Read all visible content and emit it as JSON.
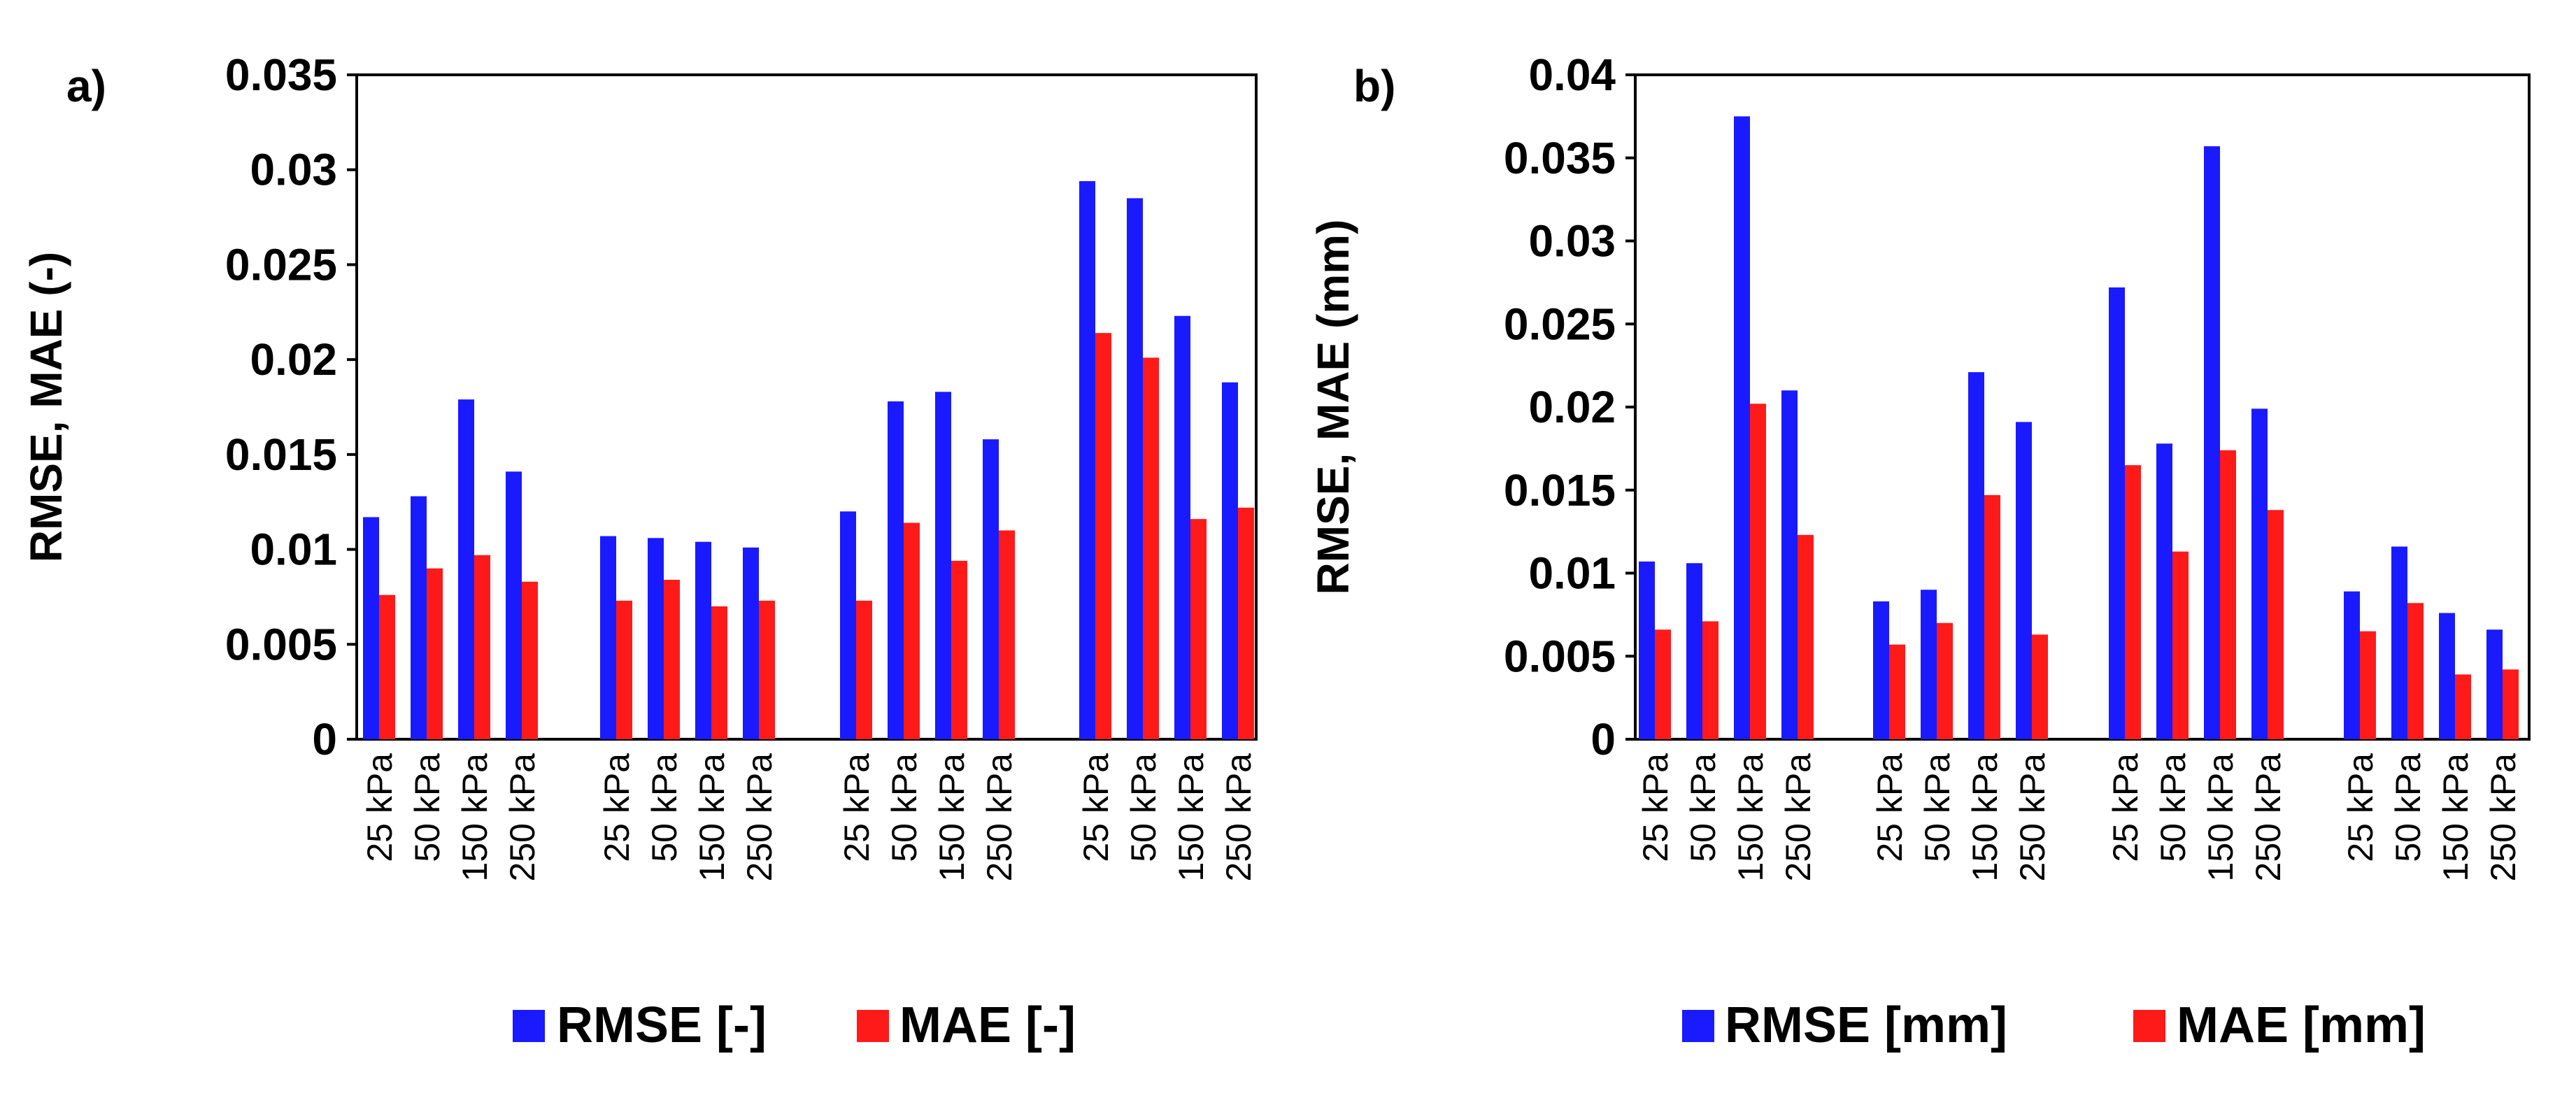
{
  "chart_data": [
    {
      "type": "bar",
      "panel_label": "a)",
      "ylabel": "RMSE, MAE (-)",
      "ylim": [
        0,
        0.035
      ],
      "yticks": [
        "0",
        "0.005",
        "0.01",
        "0.015",
        "0.02",
        "0.025",
        "0.03",
        "0.035"
      ],
      "groups": [
        {
          "categories": [
            "25 kPa",
            "50 kPa",
            "150 kPa",
            "250 kPa"
          ]
        },
        {
          "categories": [
            "25 kPa",
            "50 kPa",
            "150 kPa",
            "250 kPa"
          ]
        },
        {
          "categories": [
            "25 kPa",
            "50 kPa",
            "150 kPa",
            "250 kPa"
          ]
        },
        {
          "categories": [
            "25 kPa",
            "50 kPa",
            "150 kPa",
            "250 kPa"
          ]
        }
      ],
      "series": [
        {
          "name": "RMSE [-]",
          "color": "#1a1aff",
          "values": [
            0.0117,
            0.0128,
            0.0179,
            0.0141,
            0.0107,
            0.0106,
            0.0104,
            0.0101,
            0.012,
            0.0178,
            0.0183,
            0.0158,
            0.0294,
            0.0285,
            0.0223,
            0.0188
          ]
        },
        {
          "name": "MAE [-]",
          "color": "#ff1a1a",
          "values": [
            0.0076,
            0.009,
            0.0097,
            0.0083,
            0.0073,
            0.0084,
            0.007,
            0.0073,
            0.0073,
            0.0114,
            0.0094,
            0.011,
            0.0214,
            0.0201,
            0.0116,
            0.0122
          ]
        }
      ],
      "legend": {
        "position": "bottom",
        "entries": [
          "RMSE [-]",
          "MAE [-]"
        ]
      }
    },
    {
      "type": "bar",
      "panel_label": "b)",
      "ylabel": "RMSE, MAE (mm)",
      "ylim": [
        0,
        0.04
      ],
      "yticks": [
        "0",
        "0.005",
        "0.01",
        "0.015",
        "0.02",
        "0.025",
        "0.03",
        "0.035",
        "0.04"
      ],
      "groups": [
        {
          "categories": [
            "25 kPa",
            "50 kPa",
            "150 kPa",
            "250 kPa"
          ]
        },
        {
          "categories": [
            "25 kPa",
            "50 kPa",
            "150 kPa",
            "250 kPa"
          ]
        },
        {
          "categories": [
            "25 kPa",
            "50 kPa",
            "150 kPa",
            "250 kPa"
          ]
        },
        {
          "categories": [
            "25 kPa",
            "50 kPa",
            "150 kPa",
            "250 kPa"
          ]
        }
      ],
      "series": [
        {
          "name": "RMSE [mm]",
          "color": "#1a1aff",
          "values": [
            0.0107,
            0.0106,
            0.0375,
            0.021,
            0.0083,
            0.009,
            0.0221,
            0.0191,
            0.0272,
            0.0178,
            0.0357,
            0.0199,
            0.0089,
            0.0116,
            0.0076,
            0.0066
          ]
        },
        {
          "name": "MAE [mm]",
          "color": "#ff1a1a",
          "values": [
            0.0066,
            0.0071,
            0.0202,
            0.0123,
            0.0057,
            0.007,
            0.0147,
            0.0063,
            0.0165,
            0.0113,
            0.0174,
            0.0138,
            0.0065,
            0.0082,
            0.0039,
            0.0042
          ]
        }
      ],
      "legend": {
        "position": "bottom",
        "entries": [
          "RMSE [mm]",
          "MAE [mm]"
        ]
      }
    }
  ]
}
